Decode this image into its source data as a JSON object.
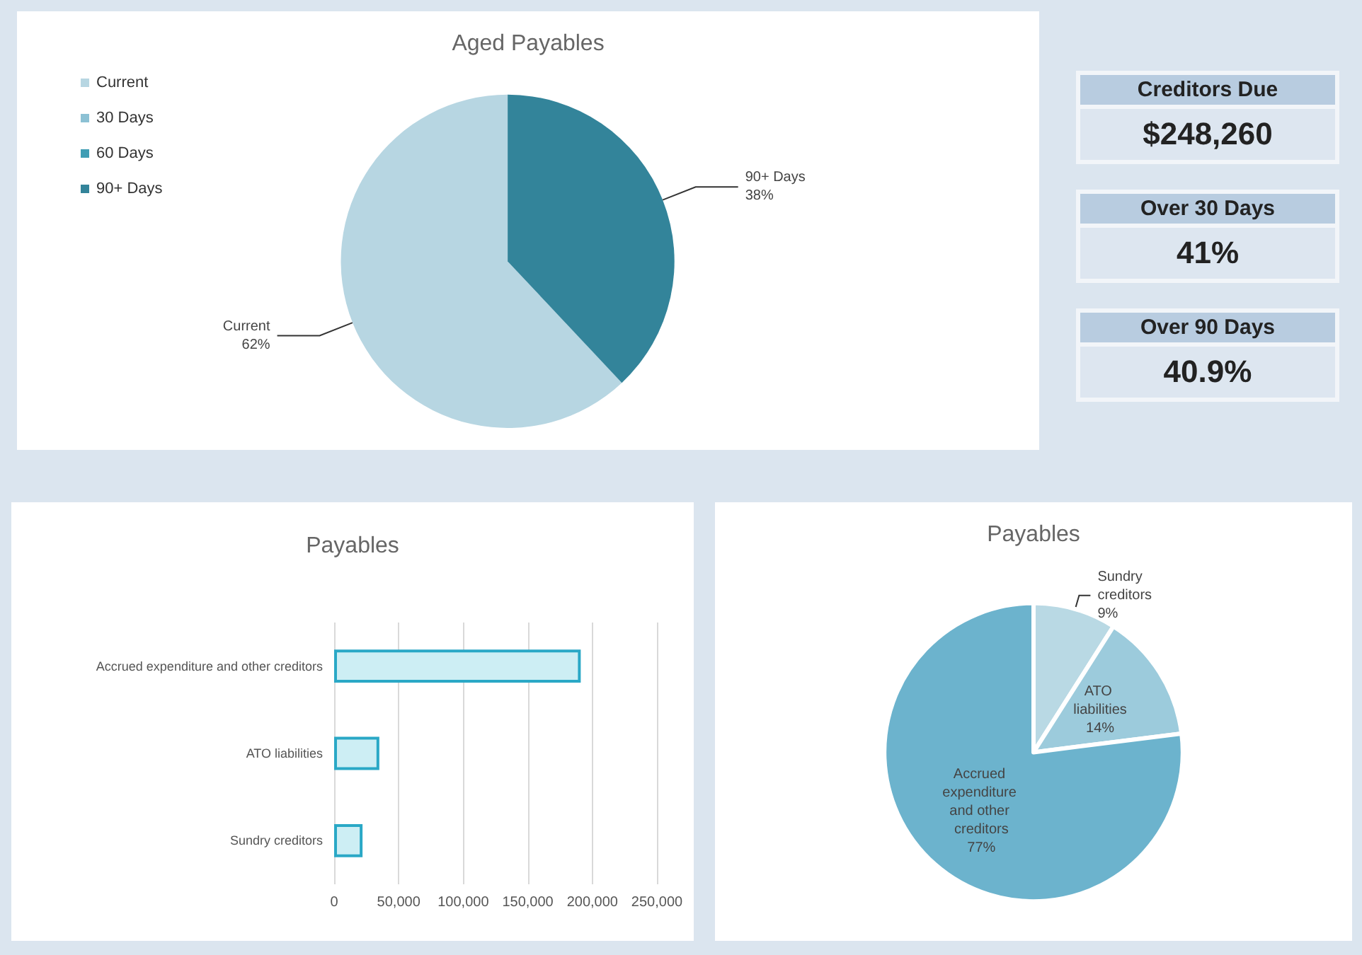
{
  "chart_data": [
    {
      "type": "pie",
      "title": "Aged Payables",
      "categories": [
        "Current",
        "30 Days",
        "60 Days",
        "90+ Days"
      ],
      "values": [
        62,
        0,
        0,
        38
      ],
      "colors": [
        "#b7d6e2",
        "#8cc1d4",
        "#3f9db4",
        "#33849a"
      ],
      "value_labels": [
        "62%",
        null,
        null,
        "38%"
      ],
      "legend": "top left"
    },
    {
      "type": "other",
      "annotations": [
        "Creditors Due",
        "$248,260",
        "Over 30 Days",
        "41%",
        "Over 90 Days",
        "40.9%"
      ]
    },
    {
      "type": "bar",
      "title": "Payables",
      "orientation": "horizontal",
      "categories": [
        "Accrued expenditure and other creditors",
        "ATO liabilities",
        "Sundry creditors"
      ],
      "values": [
        191000,
        35000,
        22000
      ],
      "color": "#cdeef4",
      "xlim": [
        0,
        250000
      ],
      "xticks": [
        0,
        {
          "value": 50000,
          "label": "50,000"
        },
        {
          "value": 100000,
          "label": "100,000"
        },
        {
          "value": 150000,
          "label": "150,000"
        },
        {
          "value": 200000,
          "label": "200,000"
        },
        {
          "value": 250000,
          "label": "250,000"
        }
      ],
      "grid": "x"
    },
    {
      "type": "pie",
      "title": "Payables",
      "categories": [
        "Sundry creditors",
        "ATO liabilities",
        "Accrued expenditure and other creditors"
      ],
      "values": [
        9,
        14,
        77
      ],
      "colors": [
        "#b9d9e4",
        "#9ccbdc",
        "#6cb3cd"
      ],
      "value_labels": [
        "9%",
        "14%",
        "77%"
      ]
    }
  ]
}
